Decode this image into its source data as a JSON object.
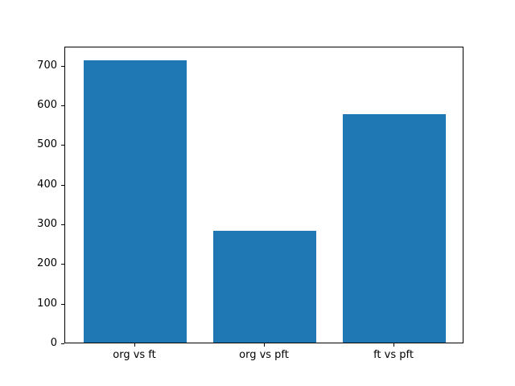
{
  "chart_data": {
    "type": "bar",
    "categories": [
      "org vs ft",
      "org vs pft",
      "ft vs pft"
    ],
    "values": [
      712,
      281,
      575
    ],
    "title": "",
    "xlabel": "",
    "ylabel": "",
    "ylim": [
      0,
      747.6
    ],
    "yticks": [
      0,
      100,
      200,
      300,
      400,
      500,
      600,
      700
    ],
    "bar_color": "#1f77b4",
    "bar_width_fraction": 0.8,
    "x_margin_fraction": 0.05,
    "grid": false,
    "legend": null,
    "background_color": "#ffffff",
    "spine_color": "#000000"
  }
}
